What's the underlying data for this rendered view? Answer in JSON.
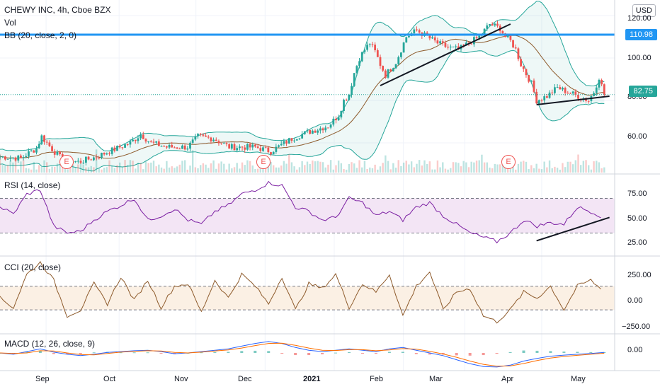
{
  "header": {
    "symbol": "CHEWY INC, 4h, Cboe BZX",
    "vol_label": "Vol",
    "bb_label": "BB (20, close, 2, 0)",
    "currency": "USD"
  },
  "indicators": {
    "rsi_label": "RSI (14, close)",
    "cci_label": "CCI (20, close)",
    "macd_label": "MACD (12, 26, close, 9)"
  },
  "x_axis": {
    "labels": [
      "Sep",
      "Oct",
      "Nov",
      "Dec",
      "2021",
      "Feb",
      "Mar",
      "Apr",
      "May"
    ]
  },
  "colors": {
    "up": "#26a69a",
    "down": "#ef5350",
    "resistance": "#2196f3",
    "bb": "#26a69a",
    "bb_basis": "#8d5a2b",
    "rsi": "#7b1fa2",
    "rsi_band": "#f3e5f5",
    "cci": "#8d5a2b",
    "cci_band": "#fbf0e4",
    "macd": "#2962ff",
    "signal": "#ff6d00",
    "current": "#26a69a"
  },
  "chart_data": [
    {
      "type": "candlestick",
      "title": "CHEWY INC, 4h, Cboe BZX",
      "y_ticks": [
        "120.00",
        "100.00",
        "80.00",
        "60.00"
      ],
      "ylim": [
        46,
        124
      ],
      "price_lines": {
        "resistance": "110.98",
        "current": "82.75"
      },
      "earnings_markers": [
        "E",
        "E",
        "E"
      ],
      "price_path": [
        [
          0,
          53.5
        ],
        [
          4,
          52.8
        ],
        [
          7,
          57.5
        ],
        [
          8,
          63
        ],
        [
          10,
          57
        ],
        [
          12,
          52
        ],
        [
          15,
          51
        ],
        [
          18,
          53
        ],
        [
          22,
          57
        ],
        [
          25,
          60
        ],
        [
          27,
          64
        ],
        [
          29,
          60
        ],
        [
          32,
          58
        ],
        [
          36,
          58
        ],
        [
          38,
          63
        ],
        [
          41,
          62
        ],
        [
          44,
          58
        ],
        [
          49,
          58
        ],
        [
          52,
          56
        ],
        [
          56,
          62
        ],
        [
          59,
          65
        ],
        [
          63,
          68
        ],
        [
          65,
          73
        ],
        [
          66,
          80
        ],
        [
          67,
          83
        ],
        [
          68,
          93
        ],
        [
          69,
          100
        ],
        [
          70,
          104
        ],
        [
          71,
          107
        ],
        [
          72,
          103
        ],
        [
          73,
          97
        ],
        [
          74,
          92
        ],
        [
          75,
          95
        ],
        [
          76,
          98
        ],
        [
          77,
          104
        ],
        [
          78,
          110
        ],
        [
          80,
          113
        ],
        [
          82,
          110
        ],
        [
          84,
          107
        ],
        [
          86,
          105
        ],
        [
          88,
          104
        ],
        [
          90,
          107
        ],
        [
          92,
          110
        ],
        [
          94,
          116
        ],
        [
          96,
          114
        ],
        [
          97,
          110
        ],
        [
          98,
          108
        ],
        [
          99,
          104
        ],
        [
          100,
          97
        ],
        [
          102,
          88
        ],
        [
          103,
          80
        ],
        [
          105,
          82
        ],
        [
          107,
          86
        ],
        [
          109,
          84
        ],
        [
          111,
          82
        ],
        [
          113,
          80
        ],
        [
          114,
          84
        ],
        [
          115,
          91
        ],
        [
          116,
          82.75
        ]
      ],
      "trendlines": [
        {
          "from": [
            73,
            87
          ],
          "to": [
            98,
            116
          ]
        },
        {
          "from": [
            103,
            78
          ],
          "to": [
            117,
            82
          ]
        }
      ]
    },
    {
      "type": "line",
      "title": "RSI (14, close)",
      "y_ticks": [
        "75.00",
        "50.00",
        "25.00"
      ],
      "ylim": [
        5,
        95
      ],
      "band": [
        30,
        70
      ],
      "values": [
        60,
        52,
        75,
        80,
        38,
        30,
        32,
        45,
        55,
        62,
        70,
        45,
        50,
        58,
        45,
        40,
        55,
        62,
        75,
        80,
        88,
        85,
        60,
        55,
        45,
        48,
        70,
        65,
        50,
        55,
        45,
        60,
        65,
        50,
        40,
        30,
        25,
        20,
        30,
        45,
        38,
        42,
        40,
        60,
        55,
        48
      ],
      "trendline": {
        "from": [
          103,
          21
        ],
        "to": [
          117,
          48
        ]
      }
    },
    {
      "type": "line",
      "title": "CCI (20, close)",
      "y_ticks": [
        "250.00",
        "0.00",
        "−250.00"
      ],
      "ylim": [
        -290,
        330
      ],
      "band": [
        -100,
        100
      ],
      "values": [
        0,
        -80,
        200,
        300,
        150,
        -150,
        -100,
        120,
        -50,
        180,
        -20,
        150,
        -80,
        100,
        120,
        -120,
        150,
        0,
        200,
        100,
        -50,
        180,
        -100,
        120,
        80,
        200,
        -80,
        120,
        50,
        200,
        -150,
        100,
        220,
        -100,
        50,
        80,
        -150,
        -200,
        -100,
        50,
        0,
        100,
        -100,
        100,
        150,
        50
      ]
    },
    {
      "type": "line",
      "title": "MACD (12, 26, close, 9)",
      "y_ticks": [
        "0.00"
      ],
      "ylim": [
        -6,
        6
      ],
      "series": [
        {
          "values": [
            0,
            -0.5,
            0.5,
            1.5,
            0.3,
            -0.5,
            -1,
            -0.5,
            0.2,
            0.5,
            0.8,
            1,
            0.5,
            -0.3,
            0,
            0.5,
            1,
            1.5,
            2.5,
            3.5,
            4.2,
            3.5,
            2,
            1,
            0.5,
            1,
            1.5,
            1,
            0.5,
            1.5,
            2,
            1,
            0,
            -1,
            -2.5,
            -4,
            -5,
            -5.2,
            -4.5,
            -3,
            -2,
            -1.2,
            -0.8,
            -0.5,
            -0.2,
            0.2
          ]
        },
        {
          "values": [
            0,
            -0.2,
            0,
            0.8,
            0.7,
            0,
            -0.6,
            -0.7,
            -0.2,
            0.3,
            0.6,
            0.8,
            0.7,
            0.2,
            0,
            0.3,
            0.7,
            1.1,
            1.8,
            2.7,
            3.5,
            3.6,
            2.8,
            1.8,
            1,
            0.9,
            1.2,
            1.2,
            0.8,
            1.1,
            1.6,
            1.4,
            0.6,
            -0.4,
            -1.6,
            -3,
            -4.2,
            -4.9,
            -4.8,
            -3.9,
            -2.8,
            -1.9,
            -1.3,
            -0.9,
            -0.5,
            -0.1
          ]
        }
      ]
    }
  ]
}
